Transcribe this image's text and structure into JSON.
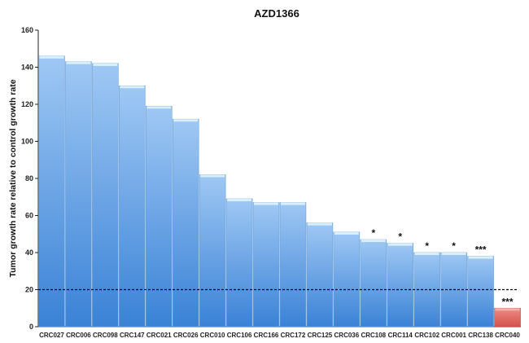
{
  "chart_data": {
    "type": "bar",
    "title": "AZD1366",
    "xlabel": "",
    "ylabel": "Tumor growth rate relative to control growth rate",
    "ylim": [
      0,
      160
    ],
    "yticks": [
      0,
      20,
      40,
      60,
      80,
      100,
      120,
      140,
      160
    ],
    "categories": [
      "CRC027",
      "CRC006",
      "CRC098",
      "CRC147",
      "CRC021",
      "CRC026",
      "CRC010",
      "CRC106",
      "CRC166",
      "CRC172",
      "CRC125",
      "CRC036",
      "CRC108",
      "CRC114",
      "CRC102",
      "CRC001",
      "CRC138",
      "CRC040"
    ],
    "values": [
      146,
      143,
      142,
      130,
      119,
      112,
      82,
      69,
      67,
      67,
      56,
      51,
      47,
      45,
      40,
      40,
      38,
      10
    ],
    "significance": [
      "",
      "",
      "",
      "",
      "",
      "",
      "",
      "",
      "",
      "",
      "",
      "",
      "*",
      "*",
      "*",
      "*",
      "***",
      "***"
    ],
    "reference_line": 20,
    "colors": {
      "bar_default": "#7fb2ec",
      "bar_default_dark": "#3a82d6",
      "bar_highlight": "#e8706a",
      "bar_highlight_dark": "#c0443e",
      "bar_top": "#d9f0fb",
      "grid": "#000000"
    },
    "grid": false,
    "legend": "none"
  }
}
